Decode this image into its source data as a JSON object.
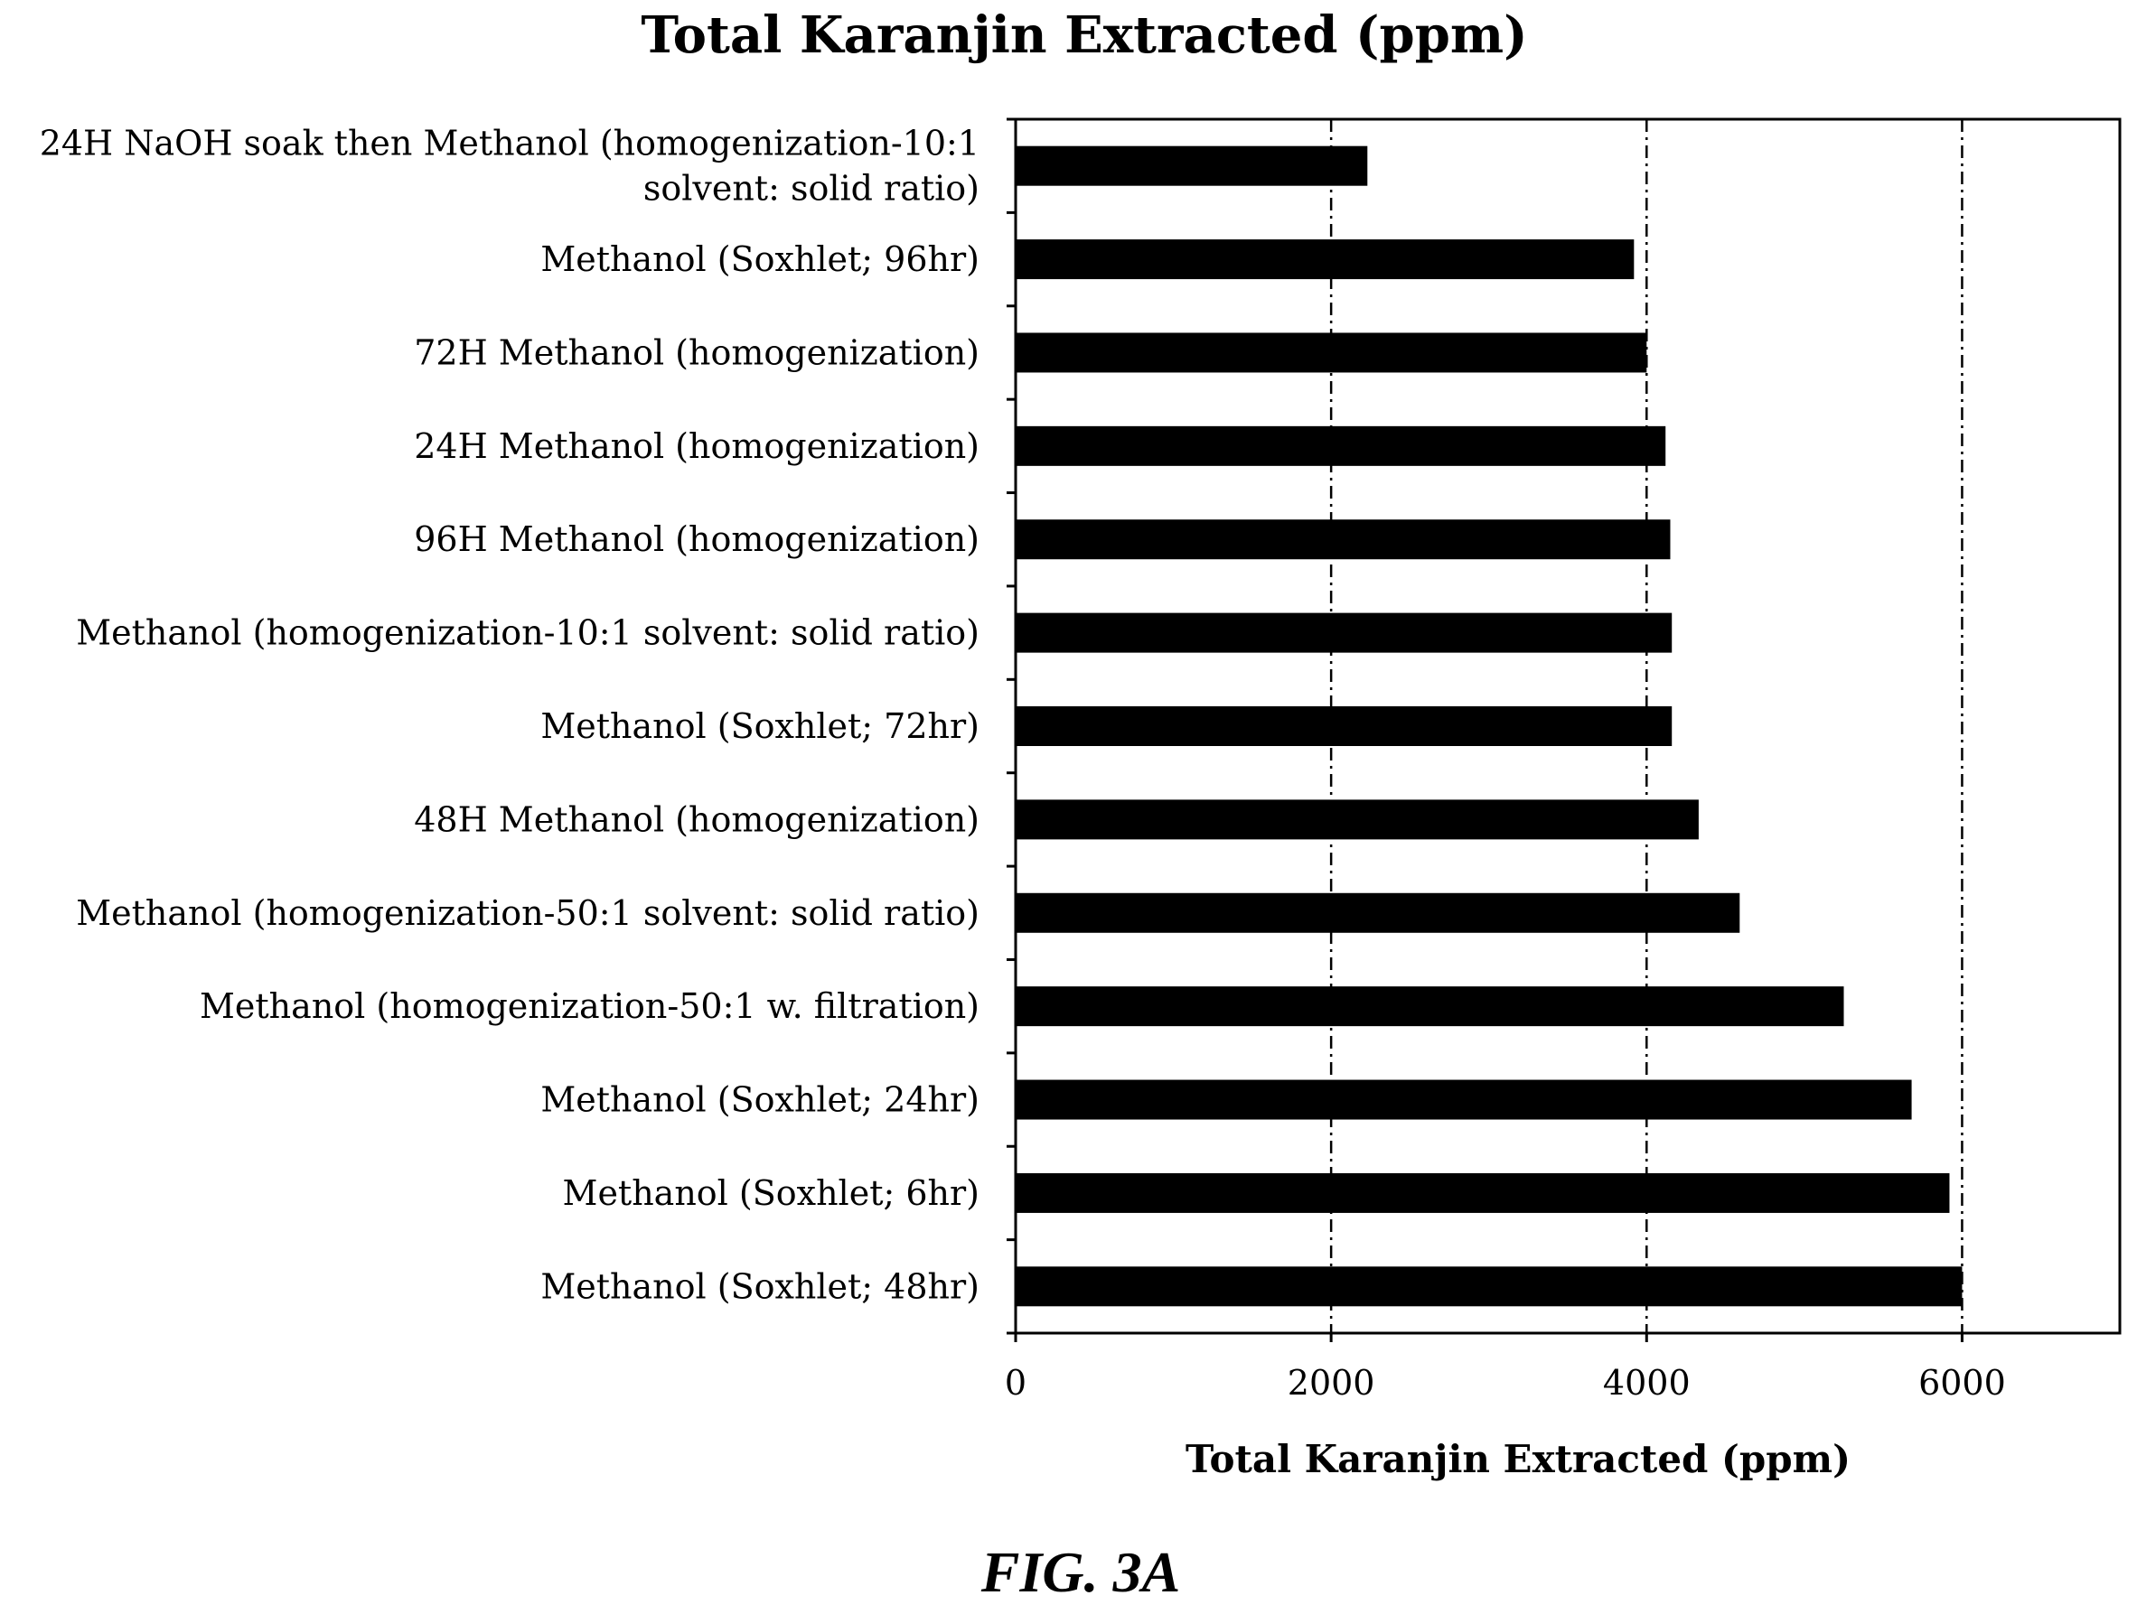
{
  "chart_data": {
    "type": "bar",
    "orientation": "horizontal",
    "title": "Total Karanjin Extracted (ppm)",
    "xlabel": "Total Karanjin Extracted (ppm)",
    "ylabel": "",
    "xlim": [
      0,
      7000
    ],
    "x_ticks": [
      0,
      2000,
      4000,
      6000
    ],
    "x_tick_labels": [
      "0",
      "2000",
      "4000",
      "6000"
    ],
    "grid": "vertical dash-dot lines at 2000, 4000, 6000",
    "categories": [
      [
        "24H NaOH soak then Methanol (homogenization-10:1",
        "solvent: solid ratio)"
      ],
      [
        "Methanol (Soxhlet; 96hr)"
      ],
      [
        "72H Methanol (homogenization)"
      ],
      [
        "24H Methanol (homogenization)"
      ],
      [
        "96H Methanol (homogenization)"
      ],
      [
        "Methanol (homogenization-10:1 solvent: solid ratio)"
      ],
      [
        "Methanol (Soxhlet; 72hr)"
      ],
      [
        "48H Methanol (homogenization)"
      ],
      [
        "Methanol (homogenization-50:1 solvent: solid ratio)"
      ],
      [
        "Methanol (homogenization-50:1 w. filtration)"
      ],
      [
        "Methanol (Soxhlet; 24hr)"
      ],
      [
        "Methanol (Soxhlet; 6hr)"
      ],
      [
        "Methanol (Soxhlet; 48hr)"
      ]
    ],
    "values": [
      2230,
      3920,
      4000,
      4120,
      4150,
      4160,
      4160,
      4330,
      4590,
      5250,
      5680,
      5920,
      6000
    ],
    "bar_color": "#000000"
  },
  "figure_caption": "FIG. 3A"
}
